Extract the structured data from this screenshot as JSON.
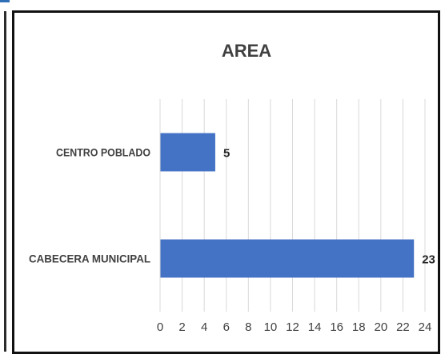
{
  "chart_data": {
    "type": "bar",
    "orientation": "horizontal",
    "title": "AREA",
    "categories": [
      "CENTRO POBLADO",
      "CABECERA MUNICIPAL"
    ],
    "values": [
      5,
      23
    ],
    "data_labels": [
      "5",
      "23"
    ],
    "xlim": [
      0,
      24
    ],
    "x_ticks": [
      0,
      2,
      4,
      6,
      8,
      10,
      12,
      14,
      16,
      18,
      20,
      22,
      24
    ],
    "xlabel": "",
    "ylabel": "",
    "grid": true,
    "legend": "none",
    "colors": {
      "bar": "#4472c4",
      "grid": "#d9d9d9",
      "text": "#404040",
      "title": "#404040",
      "frame": "#111111"
    }
  }
}
